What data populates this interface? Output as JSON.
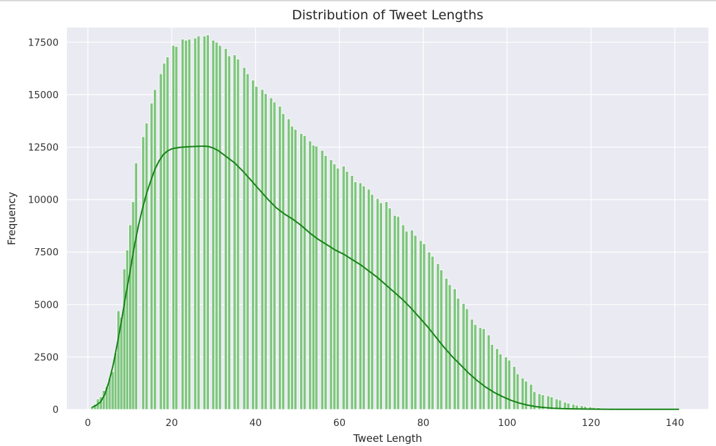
{
  "chart_data": {
    "type": "bar",
    "subtype": "histogram with kde",
    "title": "Distribution of Tweet Lengths",
    "xlabel": "Tweet Length",
    "ylabel": "Frequency",
    "xlim": [
      -5,
      148
    ],
    "ylim": [
      0,
      18200
    ],
    "xticks": [
      0,
      20,
      40,
      60,
      80,
      100,
      120,
      140
    ],
    "xtick_labels": [
      "0",
      "20",
      "40",
      "60",
      "80",
      "100",
      "120",
      "140"
    ],
    "yticks": [
      0,
      2500,
      5000,
      7500,
      10000,
      12500,
      15000,
      17500
    ],
    "ytick_labels": [
      "0",
      "2500",
      "5000",
      "7500",
      "10000",
      "12500",
      "15000",
      "17500"
    ],
    "grid": true,
    "style": "seaborn darkgrid",
    "colors": {
      "bar_fill": "#7fc57f",
      "bar_edge": "#ffffff",
      "kde_line": "#148214",
      "background": "#eaeaf2",
      "grid": "#ffffff"
    },
    "bin_width": 0.705,
    "bins": [
      {
        "x": 1,
        "y": 150
      },
      {
        "x": 1.7,
        "y": 250
      },
      {
        "x": 2.4,
        "y": 500
      },
      {
        "x": 3.1,
        "y": 600
      },
      {
        "x": 3.8,
        "y": 900
      },
      {
        "x": 4.5,
        "y": 1100
      },
      {
        "x": 5.2,
        "y": 1500
      },
      {
        "x": 5.9,
        "y": 1800
      },
      {
        "x": 6.6,
        "y": 2700
      },
      {
        "x": 7.3,
        "y": 4700
      },
      {
        "x": 8,
        "y": 4400
      },
      {
        "x": 8.7,
        "y": 6700
      },
      {
        "x": 9.4,
        "y": 7600
      },
      {
        "x": 10.1,
        "y": 8800
      },
      {
        "x": 10.8,
        "y": 9900
      },
      {
        "x": 11.5,
        "y": 11750
      },
      {
        "x": 13.2,
        "y": 13000
      },
      {
        "x": 14,
        "y": 13650
      },
      {
        "x": 15.2,
        "y": 14600
      },
      {
        "x": 16,
        "y": 15250
      },
      {
        "x": 17.4,
        "y": 16000
      },
      {
        "x": 18.2,
        "y": 16500
      },
      {
        "x": 19,
        "y": 16800
      },
      {
        "x": 20.4,
        "y": 17350
      },
      {
        "x": 21.1,
        "y": 17300
      },
      {
        "x": 22.6,
        "y": 17650
      },
      {
        "x": 23.4,
        "y": 17600
      },
      {
        "x": 24.2,
        "y": 17650
      },
      {
        "x": 25.6,
        "y": 17700
      },
      {
        "x": 26.4,
        "y": 17800
      },
      {
        "x": 27.8,
        "y": 17800
      },
      {
        "x": 28.6,
        "y": 17850
      },
      {
        "x": 29.9,
        "y": 17600
      },
      {
        "x": 30.7,
        "y": 17500
      },
      {
        "x": 31.5,
        "y": 17350
      },
      {
        "x": 32.9,
        "y": 17200
      },
      {
        "x": 33.7,
        "y": 16850
      },
      {
        "x": 35,
        "y": 16900
      },
      {
        "x": 35.8,
        "y": 16700
      },
      {
        "x": 37.3,
        "y": 16300
      },
      {
        "x": 38.1,
        "y": 16000
      },
      {
        "x": 39.4,
        "y": 15700
      },
      {
        "x": 40.2,
        "y": 15400
      },
      {
        "x": 41.6,
        "y": 15250
      },
      {
        "x": 42.4,
        "y": 15050
      },
      {
        "x": 43.7,
        "y": 14850
      },
      {
        "x": 44.5,
        "y": 14650
      },
      {
        "x": 45.8,
        "y": 14450
      },
      {
        "x": 46.6,
        "y": 14100
      },
      {
        "x": 47.9,
        "y": 13850
      },
      {
        "x": 48.7,
        "y": 13500
      },
      {
        "x": 49.5,
        "y": 13350
      },
      {
        "x": 50.9,
        "y": 13150
      },
      {
        "x": 51.7,
        "y": 13050
      },
      {
        "x": 53,
        "y": 12800
      },
      {
        "x": 53.8,
        "y": 12600
      },
      {
        "x": 54.5,
        "y": 12550
      },
      {
        "x": 55.9,
        "y": 12350
      },
      {
        "x": 56.7,
        "y": 12100
      },
      {
        "x": 58,
        "y": 11900
      },
      {
        "x": 58.8,
        "y": 11700
      },
      {
        "x": 59.6,
        "y": 11500
      },
      {
        "x": 61,
        "y": 11600
      },
      {
        "x": 61.8,
        "y": 11350
      },
      {
        "x": 63,
        "y": 11150
      },
      {
        "x": 63.8,
        "y": 10850
      },
      {
        "x": 65,
        "y": 10800
      },
      {
        "x": 65.8,
        "y": 10650
      },
      {
        "x": 67,
        "y": 10500
      },
      {
        "x": 67.8,
        "y": 10250
      },
      {
        "x": 69.1,
        "y": 10050
      },
      {
        "x": 69.9,
        "y": 9850
      },
      {
        "x": 71.2,
        "y": 9900
      },
      {
        "x": 72,
        "y": 9600
      },
      {
        "x": 73.2,
        "y": 9250
      },
      {
        "x": 74,
        "y": 9200
      },
      {
        "x": 75.2,
        "y": 8800
      },
      {
        "x": 76,
        "y": 8500
      },
      {
        "x": 77.3,
        "y": 8550
      },
      {
        "x": 78.1,
        "y": 8300
      },
      {
        "x": 79.4,
        "y": 8050
      },
      {
        "x": 80.2,
        "y": 7900
      },
      {
        "x": 81.4,
        "y": 7500
      },
      {
        "x": 82.2,
        "y": 7300
      },
      {
        "x": 83.5,
        "y": 6950
      },
      {
        "x": 84.3,
        "y": 6650
      },
      {
        "x": 85.5,
        "y": 6250
      },
      {
        "x": 86.3,
        "y": 5950
      },
      {
        "x": 87.5,
        "y": 5750
      },
      {
        "x": 88.3,
        "y": 5300
      },
      {
        "x": 89.6,
        "y": 5050
      },
      {
        "x": 90.4,
        "y": 4800
      },
      {
        "x": 91.6,
        "y": 4300
      },
      {
        "x": 92.4,
        "y": 4050
      },
      {
        "x": 93.6,
        "y": 3900
      },
      {
        "x": 94.4,
        "y": 3850
      },
      {
        "x": 95.6,
        "y": 3550
      },
      {
        "x": 96.4,
        "y": 3100
      },
      {
        "x": 97.6,
        "y": 2900
      },
      {
        "x": 98.4,
        "y": 2650
      },
      {
        "x": 99.7,
        "y": 2500
      },
      {
        "x": 100.5,
        "y": 2350
      },
      {
        "x": 101.7,
        "y": 2050
      },
      {
        "x": 102.5,
        "y": 1700
      },
      {
        "x": 103.7,
        "y": 1500
      },
      {
        "x": 104.5,
        "y": 1350
      },
      {
        "x": 105.7,
        "y": 1200
      },
      {
        "x": 106.5,
        "y": 850
      },
      {
        "x": 107.7,
        "y": 750
      },
      {
        "x": 108.5,
        "y": 700
      },
      {
        "x": 109.8,
        "y": 650
      },
      {
        "x": 110.6,
        "y": 600
      },
      {
        "x": 111.8,
        "y": 500
      },
      {
        "x": 112.6,
        "y": 450
      },
      {
        "x": 113.8,
        "y": 350
      },
      {
        "x": 114.6,
        "y": 300
      },
      {
        "x": 115.8,
        "y": 250
      },
      {
        "x": 116.6,
        "y": 200
      },
      {
        "x": 117.8,
        "y": 180
      },
      {
        "x": 118.6,
        "y": 150
      },
      {
        "x": 119.8,
        "y": 120
      },
      {
        "x": 120.6,
        "y": 100
      },
      {
        "x": 121.8,
        "y": 80
      },
      {
        "x": 122.6,
        "y": 60
      },
      {
        "x": 124,
        "y": 50
      },
      {
        "x": 126,
        "y": 40
      },
      {
        "x": 128,
        "y": 30
      },
      {
        "x": 130,
        "y": 25
      },
      {
        "x": 132,
        "y": 20
      },
      {
        "x": 134,
        "y": 15
      },
      {
        "x": 136,
        "y": 10
      },
      {
        "x": 138,
        "y": 10
      },
      {
        "x": 140,
        "y": 8
      }
    ],
    "kde": {
      "x": [
        1,
        2,
        3,
        4,
        5,
        6,
        7,
        8,
        9,
        10,
        11,
        12,
        13,
        14,
        15,
        16,
        17,
        18,
        19,
        20,
        21,
        22,
        23,
        24,
        25,
        26,
        27,
        28,
        29,
        30,
        31,
        32,
        33,
        35,
        37,
        39,
        41,
        43,
        45,
        47,
        49,
        51,
        53,
        55,
        57,
        59,
        61,
        63,
        65,
        67,
        69,
        71,
        73,
        75,
        77,
        79,
        81,
        83,
        85,
        87,
        89,
        91,
        93,
        95,
        97,
        99,
        101,
        103,
        105,
        107,
        109,
        111,
        113,
        115,
        117,
        120,
        125,
        130,
        135,
        141
      ],
      "y": [
        100,
        200,
        350,
        700,
        1300,
        2100,
        3100,
        4200,
        5400,
        6500,
        7700,
        8700,
        9550,
        10300,
        10900,
        11450,
        11850,
        12150,
        12320,
        12420,
        12460,
        12490,
        12510,
        12520,
        12530,
        12540,
        12545,
        12550,
        12520,
        12450,
        12350,
        12200,
        12050,
        11750,
        11350,
        10900,
        10450,
        10000,
        9600,
        9300,
        9050,
        8750,
        8400,
        8100,
        7850,
        7600,
        7400,
        7150,
        6900,
        6600,
        6300,
        5950,
        5600,
        5250,
        4850,
        4400,
        3950,
        3450,
        2950,
        2500,
        2100,
        1700,
        1350,
        1050,
        800,
        600,
        430,
        300,
        200,
        130,
        90,
        60,
        40,
        30,
        25,
        15,
        10,
        8,
        6,
        5
      ]
    }
  }
}
